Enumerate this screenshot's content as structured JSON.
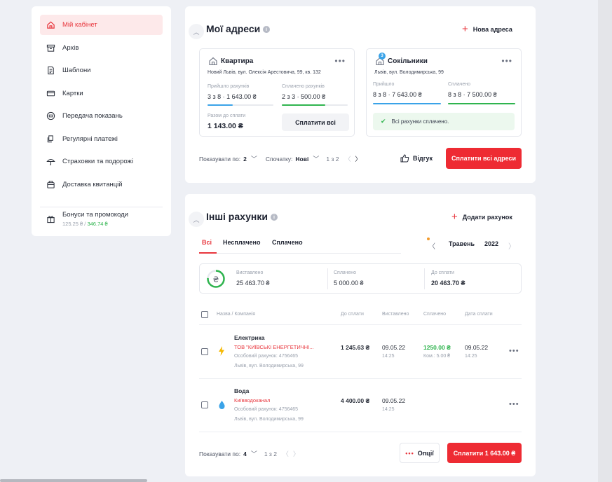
{
  "sidebar": {
    "items": [
      {
        "label": "Мій кабінет",
        "icon": "home-icon"
      },
      {
        "label": "Архів",
        "icon": "archive-icon"
      },
      {
        "label": "Шаблони",
        "icon": "template-icon"
      },
      {
        "label": "Картки",
        "icon": "card-icon"
      },
      {
        "label": "Передача показань",
        "icon": "meter-icon"
      },
      {
        "label": "Регулярні платежі",
        "icon": "recurring-icon"
      },
      {
        "label": "Страховки та подорожі",
        "icon": "umbrella-icon"
      },
      {
        "label": "Доставка квитанцій",
        "icon": "delivery-icon"
      }
    ],
    "bonus": {
      "label": "Бонуси та промокоди",
      "value1": "125.25 ₴",
      "sep": " / ",
      "value2": "346.74 ₴",
      "icon": "gift-icon"
    }
  },
  "addresses": {
    "title": "Мої адреси",
    "add_label": "Нова адреса",
    "cards": [
      {
        "name": "Квартира",
        "street": "Новий Львів, вул. Олексія Арестовича, 99, кв. 132",
        "col1_label": "Прийшло рахунків",
        "col1_value": "3 з 8  ·  1 643.00 ₴",
        "col2_label": "Сплачено рахунків",
        "col2_value": "2 з 3  ·  500.00 ₴",
        "total_label": "Разом до сплати",
        "total_value": "1 143.00 ₴",
        "pay_label": "Сплатити всі"
      },
      {
        "name": "Сокільники",
        "badge": "3",
        "street": "Львів, вул. Володимирська, 99",
        "col1_label": "Прийшло",
        "col1_value": "8 з 8  ·  7 643.00 ₴",
        "col2_label": "Сплачено",
        "col2_value": "8 з 8  ·  7 500.00 ₴",
        "status": "Всі рахунки сплачено."
      }
    ],
    "pager": {
      "show_label": "Показувати по:",
      "show_value": "2",
      "sort_label": "Спочатку:",
      "sort_value": "Нові",
      "page": "1 з 2",
      "feedback": "Відгук",
      "pay_all": "Сплатити всі адреси"
    }
  },
  "other": {
    "title": "Інші рахунки",
    "add_label": "Додати рахунок",
    "tabs": [
      "Всі",
      "Несплачено",
      "Сплачено"
    ],
    "month": "Травень",
    "year": "2022",
    "summary": [
      {
        "label": "Виставлено",
        "value": "25 463.70 ₴"
      },
      {
        "label": "Сплачено",
        "value": "5 000.00 ₴"
      },
      {
        "label": "До сплати",
        "value": "20 463.70 ₴"
      }
    ],
    "columns": [
      "Назва / Компанія",
      "До сплати",
      "Виставлено",
      "Сплачено",
      "Дата сплати"
    ],
    "rows": [
      {
        "icon": "lightning-icon",
        "name": "Електрика",
        "company": "ТОВ \"КИЇВСЬКІ ЕНЕРГЕТИЧНІ...",
        "account": "Особовий рахунок: 4756465",
        "address": "Львів, вул. Володимирська, 99",
        "due": "1 245.63 ₴",
        "issued": "09.05.22",
        "issued_time": "14:25",
        "paid": "1250.00 ₴",
        "commission": "Ком.: 5.00 ₴",
        "paid_date": "09.05.22",
        "paid_time": "14:25"
      },
      {
        "icon": "water-drop-icon",
        "name": "Вода",
        "company": "Київводоканал",
        "account": "Особовий рахунок: 4756465",
        "address": "Львів, вул. Володимирська, 99",
        "due": "4 400.00 ₴",
        "issued": "09.05.22",
        "issued_time": "14:25"
      }
    ],
    "pager": {
      "show_label": "Показувати по:",
      "show_value": "4",
      "page": "1 з 2",
      "options": "Опції",
      "pay": "Сплатити 1 643.00 ₴"
    }
  },
  "colors": {
    "accent": "#ee2b33",
    "blue": "#3aa3e8",
    "green": "#2fb44e",
    "bg": "#eef0f5"
  }
}
